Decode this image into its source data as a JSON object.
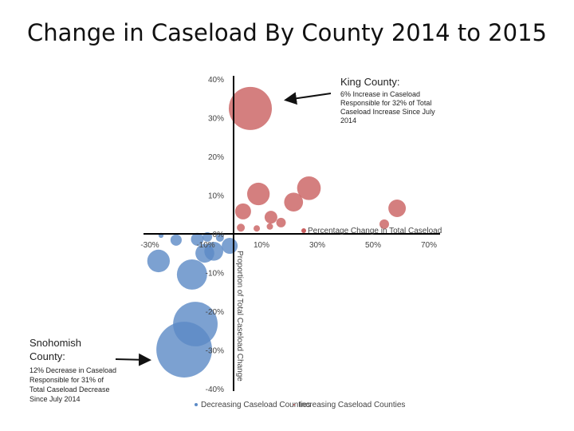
{
  "title": "Change in Caseload By County 2014 to 2015",
  "annotations": {
    "king": {
      "heading": "King County:",
      "body": "6% Increase in Caseload Responsible for 32% of Total Caseload Increase Since July 2014"
    },
    "snohomish": {
      "heading": "Snohomish County:",
      "body": "12% Decrease in Caseload Responsible for 31% of Total Caseload Decrease Since July 2014"
    }
  },
  "chart_data": {
    "type": "bubble",
    "xlabel": "Percentage Change in Total Caseload",
    "ylabel": "Proportion of Total Caseload Change",
    "xlim": [
      -35,
      75
    ],
    "ylim": [
      -40,
      40
    ],
    "x_ticks": [
      "-30%",
      "-10%",
      "10%",
      "30%",
      "50%",
      "70%"
    ],
    "x_tick_values": [
      -30,
      -10,
      10,
      30,
      50,
      70
    ],
    "y_ticks": [
      "40%",
      "30%",
      "20%",
      "10%",
      "0%",
      "-10%",
      "-20%",
      "-30%",
      "-40%"
    ],
    "y_tick_values": [
      40,
      30,
      20,
      10,
      0,
      -10,
      -20,
      -30,
      -40
    ],
    "legend_position": "bottom",
    "series": [
      {
        "name": "Decreasing Caseload Counties",
        "color": "#5b8ac6",
        "points": [
          {
            "x": -17.7,
            "y": -29.9,
            "size": 122
          },
          {
            "x": -13.7,
            "y": -23.3,
            "size": 78
          },
          {
            "x": -14.9,
            "y": -10.5,
            "size": 36
          },
          {
            "x": -26.9,
            "y": -7.0,
            "size": 20
          },
          {
            "x": -10.3,
            "y": -5.0,
            "size": 14
          },
          {
            "x": -7.1,
            "y": -4.5,
            "size": 14
          },
          {
            "x": -1.4,
            "y": -3.1,
            "size": 10
          },
          {
            "x": -20.6,
            "y": -1.6,
            "size": 5
          },
          {
            "x": -13.0,
            "y": -1.4,
            "size": 6.4
          },
          {
            "x": -26.0,
            "y": -0.4,
            "size": 1
          },
          {
            "x": -9.4,
            "y": -0.8,
            "size": 3.6
          },
          {
            "x": -4.9,
            "y": -1.0,
            "size": 2.5
          }
        ]
      },
      {
        "name": "Increasing Caseload Counties",
        "color": "#c95f5f",
        "points": [
          {
            "x": 6.0,
            "y": 32.4,
            "size": 73
          },
          {
            "x": 8.9,
            "y": 10.3,
            "size": 20
          },
          {
            "x": 27.0,
            "y": 11.8,
            "size": 22
          },
          {
            "x": 21.5,
            "y": 8.2,
            "size": 14
          },
          {
            "x": 58.6,
            "y": 6.6,
            "size": 12
          },
          {
            "x": 3.4,
            "y": 5.8,
            "size": 10
          },
          {
            "x": 13.4,
            "y": 4.3,
            "size": 6.4
          },
          {
            "x": 17.0,
            "y": 2.9,
            "size": 3.6
          },
          {
            "x": 54.0,
            "y": 2.5,
            "size": 3.6
          },
          {
            "x": 2.6,
            "y": 1.6,
            "size": 2.5
          },
          {
            "x": 8.3,
            "y": 1.4,
            "size": 1.6
          },
          {
            "x": 13.0,
            "y": 1.9,
            "size": 1.6
          }
        ]
      }
    ]
  }
}
